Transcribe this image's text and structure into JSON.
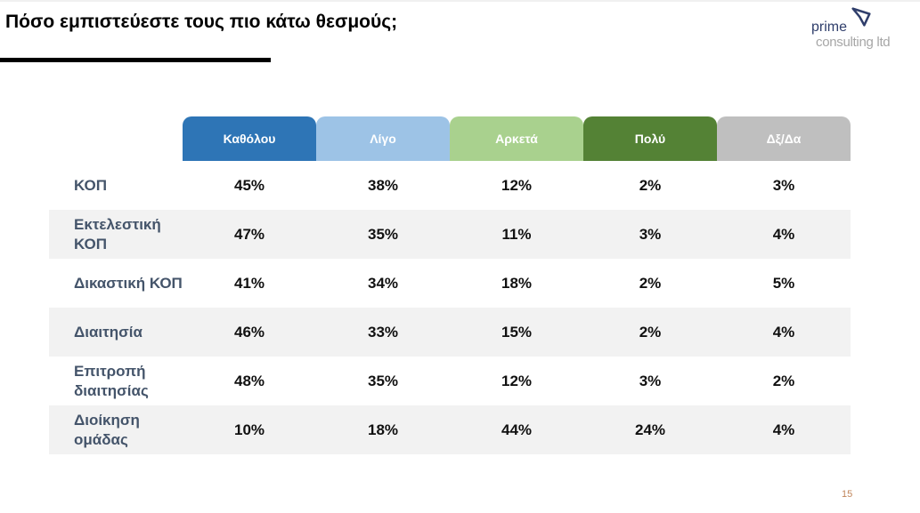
{
  "title": "Πόσο εμπιστεύεστε τους πιο κάτω θεσμούς;",
  "logo": {
    "line1": "prime",
    "line2": "consulting ltd"
  },
  "table": {
    "headers": [
      {
        "label": "Καθόλου",
        "color": "#2e75b6"
      },
      {
        "label": "Λίγο",
        "color": "#9dc3e6"
      },
      {
        "label": "Αρκετά",
        "color": "#a9d18e"
      },
      {
        "label": "Πολύ",
        "color": "#548235"
      },
      {
        "label": "Δξ/Δα",
        "color": "#bfbfbf"
      }
    ],
    "rows": [
      {
        "label": "ΚΟΠ",
        "values": [
          "45%",
          "38%",
          "12%",
          "2%",
          "3%"
        ]
      },
      {
        "label": "Εκτελεστική ΚΟΠ",
        "values": [
          "47%",
          "35%",
          "11%",
          "3%",
          "4%"
        ]
      },
      {
        "label": "Δικαστική ΚΟΠ",
        "values": [
          "41%",
          "34%",
          "18%",
          "2%",
          "5%"
        ]
      },
      {
        "label": "Διαιτησία",
        "values": [
          "46%",
          "33%",
          "15%",
          "2%",
          "4%"
        ]
      },
      {
        "label": "Επιτροπή διαιτησίας",
        "values": [
          "48%",
          "35%",
          "12%",
          "3%",
          "2%"
        ]
      },
      {
        "label": "Διοίκηση ομάδας",
        "values": [
          "10%",
          "18%",
          "44%",
          "24%",
          "4%"
        ]
      }
    ]
  },
  "page_number": "15"
}
